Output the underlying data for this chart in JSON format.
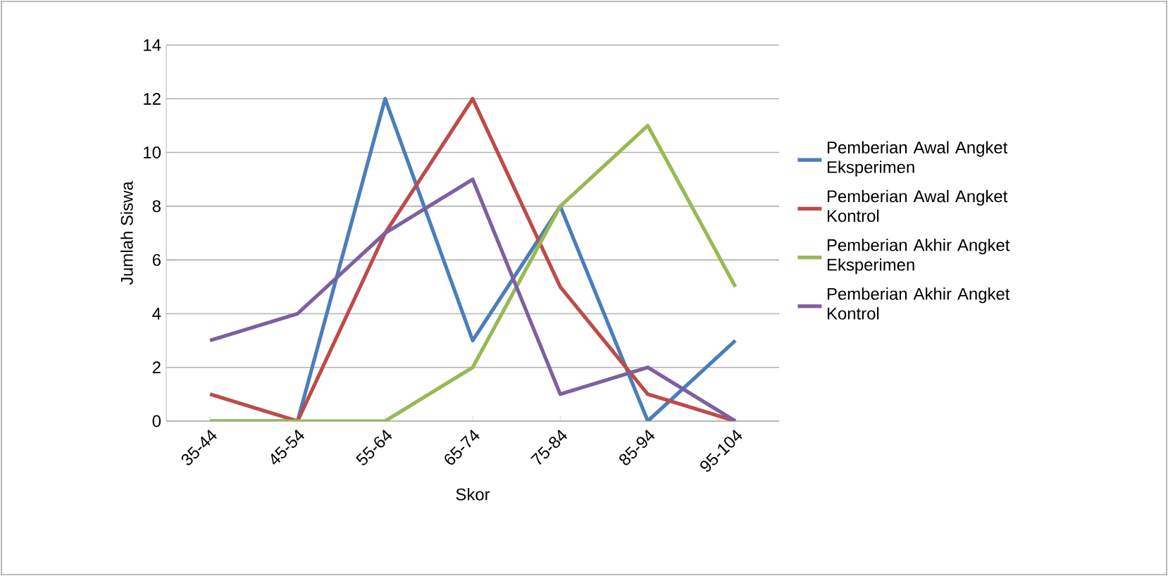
{
  "chart_data": {
    "type": "line",
    "xlabel": "Skor",
    "ylabel": "Jumlah Siswa",
    "categories": [
      "35-44",
      "45-54",
      "55-64",
      "65-74",
      "75-84",
      "85-94",
      "95-104"
    ],
    "series": [
      {
        "name": "Pemberian Awal Angket Eksperimen",
        "color": "#4a7ebb",
        "values": [
          0,
          0,
          12,
          3,
          8,
          0,
          3
        ]
      },
      {
        "name": "Pemberian Awal Angket Kontrol",
        "color": "#be4b48",
        "values": [
          1,
          0,
          7,
          12,
          5,
          1,
          0
        ]
      },
      {
        "name": "Pemberian Akhir Angket Eksperimen",
        "color": "#98b954",
        "values": [
          0,
          0,
          0,
          2,
          8,
          11,
          5
        ]
      },
      {
        "name": "Pemberian Akhir Angket Kontrol",
        "color": "#7d60a0",
        "values": [
          3,
          4,
          7,
          9,
          1,
          2,
          0
        ]
      }
    ],
    "ylim": [
      0,
      14
    ],
    "yticks": [
      0,
      2,
      4,
      6,
      8,
      10,
      12,
      14
    ],
    "grid": "y",
    "legend": "right",
    "marker": "none",
    "line_style": "solid"
  }
}
